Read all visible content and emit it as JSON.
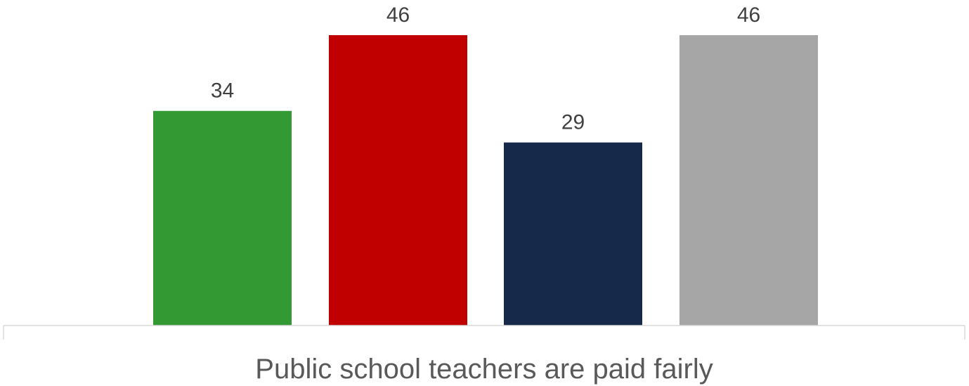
{
  "chart_data": {
    "type": "bar",
    "categories": [
      "Public school teachers are paid fairly"
    ],
    "series": [
      {
        "values": [
          34
        ],
        "color": "#339933"
      },
      {
        "values": [
          46
        ],
        "color": "#C00000"
      },
      {
        "values": [
          29
        ],
        "color": "#17294A"
      },
      {
        "values": [
          46
        ],
        "color": "#A6A6A6"
      }
    ],
    "title": "",
    "xlabel": "",
    "ylabel": "",
    "ylim": [
      0,
      46
    ],
    "grid": false,
    "data_labels": true,
    "axis_color": "#D9D9D9"
  }
}
